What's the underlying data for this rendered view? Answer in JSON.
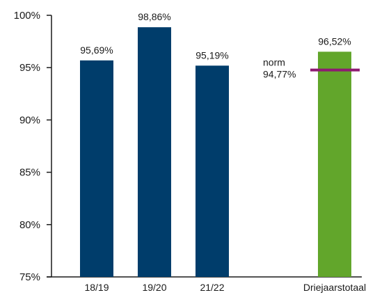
{
  "chart_data": {
    "type": "bar",
    "categories": [
      "18/19",
      "19/20",
      "21/22",
      "Driejaarstotaal"
    ],
    "values": [
      95.69,
      98.86,
      95.19,
      96.52
    ],
    "value_labels": [
      "95,69%",
      "98,86%",
      "95,19%",
      "96,52%"
    ],
    "ylim": [
      75,
      100
    ],
    "yticks": [
      75,
      80,
      85,
      90,
      95,
      100
    ],
    "ytick_labels": [
      "75%",
      "80%",
      "85%",
      "90%",
      "95%",
      "100%"
    ],
    "grid": false,
    "norm": {
      "label": "norm",
      "value": 94.77,
      "value_label": "94,77%"
    },
    "colors": {
      "yearly_bar": "#003d6b",
      "total_bar": "#62a62b",
      "norm_line": "#8e1a72",
      "axis": "#1a1a1a"
    }
  }
}
